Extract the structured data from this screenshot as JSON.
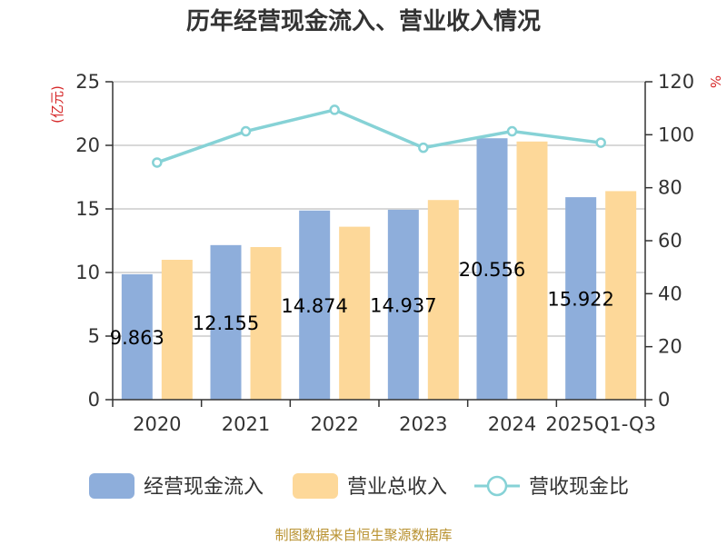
{
  "chart_data": {
    "type": "bar",
    "title": "历年经营现金流入、营业收入情况",
    "categories": [
      "2020",
      "2021",
      "2022",
      "2023",
      "2024",
      "2025Q1-Q3"
    ],
    "series": [
      {
        "name": "经营现金流入",
        "type": "bar",
        "axis": "left",
        "color": "#8eaedb",
        "values": [
          9.863,
          12.155,
          14.874,
          14.937,
          20.556,
          15.922
        ]
      },
      {
        "name": "营业总收入",
        "type": "bar",
        "axis": "left",
        "color": "#fdd899",
        "values": [
          11.0,
          12.0,
          13.6,
          15.7,
          20.3,
          16.4
        ]
      },
      {
        "name": "营收现金比",
        "type": "line",
        "axis": "right",
        "color": "#86d2d6",
        "values": [
          89.5,
          101.3,
          109.4,
          95.1,
          101.3,
          97.0
        ]
      }
    ],
    "data_labels": [
      "9.863",
      "12.155",
      "14.874",
      "14.937",
      "20.556",
      "15.922"
    ],
    "y_left": {
      "label": "(亿元)",
      "min": 0,
      "max": 25,
      "ticks": [
        "0",
        "5",
        "10",
        "15",
        "20",
        "25"
      ]
    },
    "y_right": {
      "label": "%",
      "min": 0,
      "max": 120,
      "ticks": [
        "0",
        "20",
        "40",
        "60",
        "80",
        "100",
        "120"
      ]
    },
    "grid": true,
    "legend_position": "bottom"
  },
  "source_note": "制图数据来自恒生聚源数据库"
}
